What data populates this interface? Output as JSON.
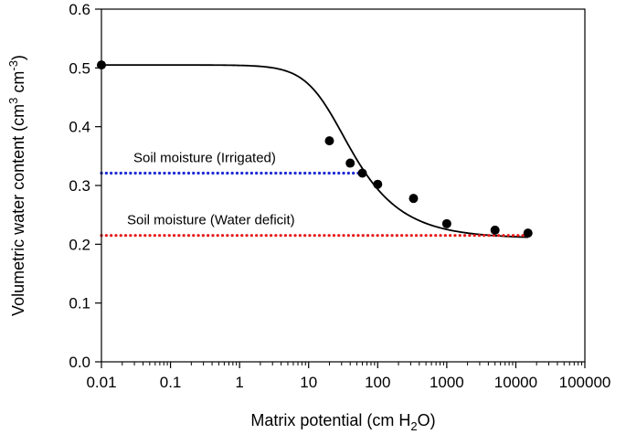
{
  "chart_data": {
    "type": "scatter",
    "x_scale": "log",
    "xlabel_parts": [
      "Matrix potential (cm H",
      "2",
      "O)"
    ],
    "ylabel_parts": [
      "Volumetric water content (cm",
      "3",
      " cm",
      "-3",
      ")"
    ],
    "xlim": [
      0.01,
      100000
    ],
    "ylim": [
      0.0,
      0.6
    ],
    "x_ticks": [
      0.01,
      0.1,
      1,
      10,
      100,
      1000,
      10000,
      100000
    ],
    "x_tick_labels": [
      "0.01",
      "0.1",
      "1",
      "10",
      "100",
      "1000",
      "10000",
      "100000"
    ],
    "y_ticks": [
      0.0,
      0.1,
      0.2,
      0.3,
      0.4,
      0.5,
      0.6
    ],
    "y_tick_labels": [
      "0.0",
      "0.1",
      "0.2",
      "0.3",
      "0.4",
      "0.5",
      "0.6"
    ],
    "grid": false,
    "legend": "none",
    "points": {
      "x": [
        0.01,
        20,
        40,
        60,
        100,
        330,
        1000,
        5000,
        15000
      ],
      "y": [
        0.505,
        0.376,
        0.338,
        0.321,
        0.302,
        0.278,
        0.235,
        0.224,
        0.219
      ]
    },
    "fit_curve": {
      "model": "van Genuchten",
      "theta_r": 0.21,
      "theta_s": 0.505,
      "alpha": 0.052,
      "n": 1.75,
      "color": "#000000"
    },
    "reference_lines": [
      {
        "label": "Soil moisture (Irrigated)",
        "y": 0.321,
        "x_start": 0.01,
        "x_end": 60,
        "color": "#1f2dd6",
        "style": "dotted"
      },
      {
        "label": "Soil moisture (Water deficit)",
        "y": 0.215,
        "x_start": 0.01,
        "x_end": 15000,
        "color": "#e8191a",
        "style": "dotted"
      }
    ]
  }
}
